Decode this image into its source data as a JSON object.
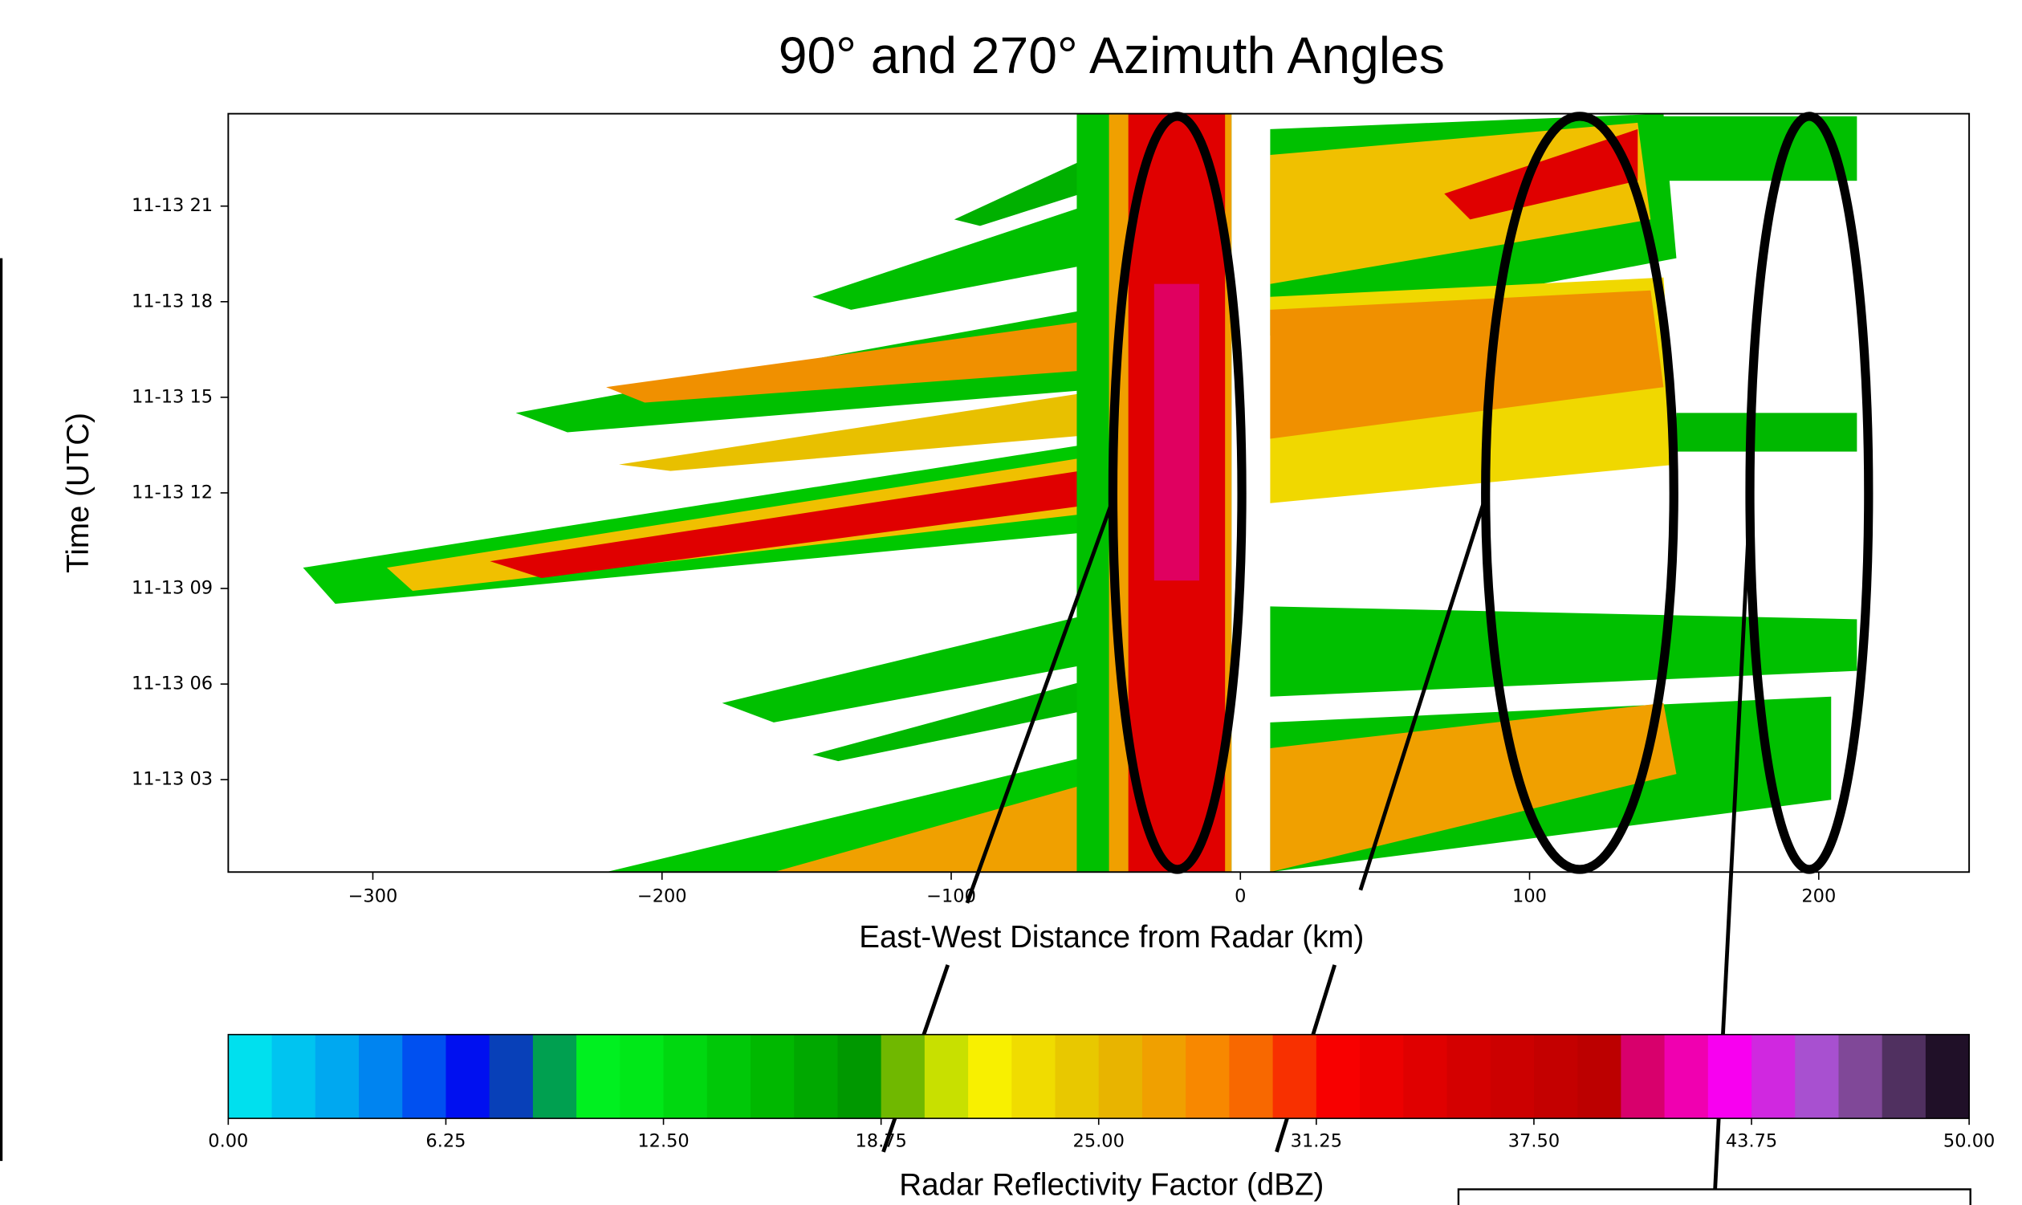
{
  "chart_data": {
    "type": "heatmap",
    "title": "90° and 270° Azimuth Angles",
    "x_label": "East-West Distance from Radar (km)",
    "y_label": "Time (UTC)",
    "xlim": [
      -350,
      252
    ],
    "xticks": [
      {
        "value": -300,
        "label": "−300"
      },
      {
        "value": -200,
        "label": "−200"
      },
      {
        "value": -100,
        "label": "−100"
      },
      0,
      100,
      200
    ],
    "ylim": [
      0.1,
      23.9
    ],
    "yticks": [
      {
        "value": 3,
        "label": "11-13 03"
      },
      {
        "value": 6,
        "label": "11-13 06"
      },
      {
        "value": 9,
        "label": "11-13 09"
      },
      {
        "value": 12,
        "label": "11-13 12"
      },
      {
        "value": 15,
        "label": "11-13 15"
      },
      {
        "value": 18,
        "label": "11-13 18"
      },
      {
        "value": 21,
        "label": "11-13 21"
      }
    ],
    "colorbar": {
      "label": "Radar Reflectivity Factor (dBZ)",
      "lim": [
        0,
        50
      ],
      "colors": [
        "#00e0ee",
        "#00c4f0",
        "#00a8f0",
        "#0084f0",
        "#0050f0",
        "#0010f0",
        "#0840b8",
        "#00a050",
        "#00f020",
        "#00e818",
        "#00d810",
        "#00c808",
        "#00b800",
        "#00a800",
        "#009800",
        "#70b800",
        "#c8e000",
        "#f8f000",
        "#f0dc00",
        "#e8c800",
        "#e8b400",
        "#f0a000",
        "#f88800",
        "#f86800",
        "#f83000",
        "#f80000",
        "#ec0000",
        "#e00000",
        "#d40000",
        "#cc0000",
        "#c40000",
        "#bc0000",
        "#d8006c",
        "#f000b0",
        "#f800f0",
        "#d028e0",
        "#a850d0",
        "#804898",
        "#503060",
        "#201028"
      ],
      "ticks": [
        {
          "value": 0,
          "label": "0.00"
        },
        {
          "value": 6.25,
          "label": "6.25"
        },
        {
          "value": 12.5,
          "label": "12.50"
        },
        {
          "value": 18.75,
          "label": "18.75"
        },
        {
          "value": 25,
          "label": "25.00"
        },
        {
          "value": 31.25,
          "label": "31.25"
        },
        {
          "value": 37.5,
          "label": "37.50"
        },
        {
          "value": 43.75,
          "label": "43.75"
        },
        {
          "value": 50,
          "label": "50.00"
        }
      ]
    }
  }
}
